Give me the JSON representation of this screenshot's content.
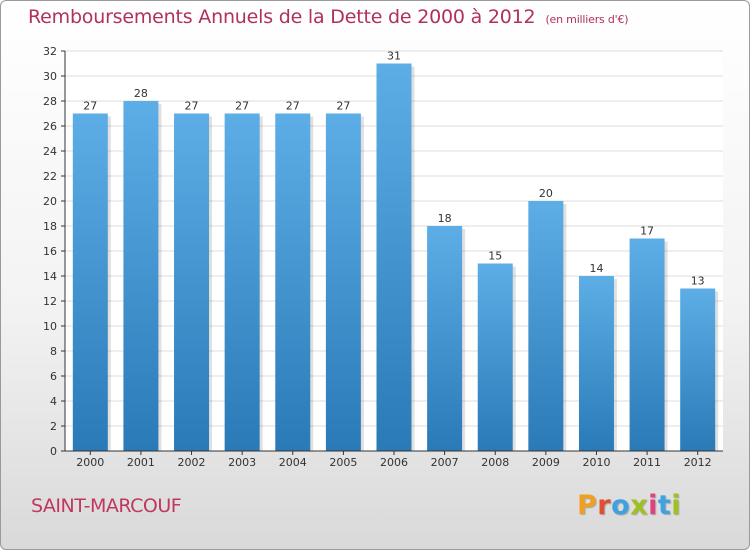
{
  "header": {
    "title": "Remboursements Annuels de la Dette de 2000 à 2012",
    "subtitle": "(en milliers d'€)"
  },
  "footer": {
    "commune": "SAINT-MARCOUF",
    "logo": [
      "P",
      "r",
      "o",
      "x",
      "i",
      "t",
      "i"
    ]
  },
  "colors": {
    "title": "#b03060",
    "bar_top": "#5dade6",
    "bar_bottom": "#2a7ab8",
    "grid": "#dddddd",
    "axis": "#333333"
  },
  "chart_data": {
    "type": "bar",
    "title": "Remboursements Annuels de la Dette de 2000 à 2012",
    "xlabel": "",
    "ylabel": "",
    "ylim": [
      0,
      32
    ],
    "yticks": [
      0,
      2,
      4,
      6,
      8,
      10,
      12,
      14,
      16,
      18,
      20,
      22,
      24,
      26,
      28,
      30,
      32
    ],
    "grid": true,
    "categories": [
      "2000",
      "2001",
      "2002",
      "2003",
      "2004",
      "2005",
      "2006",
      "2007",
      "2008",
      "2009",
      "2010",
      "2011",
      "2012"
    ],
    "values": [
      27,
      28,
      27,
      27,
      27,
      27,
      31,
      18,
      15,
      20,
      14,
      17,
      13
    ],
    "data_labels": [
      "27",
      "28",
      "27",
      "27",
      "27",
      "27",
      "31",
      "18",
      "15",
      "20",
      "14",
      "17",
      "13"
    ]
  }
}
